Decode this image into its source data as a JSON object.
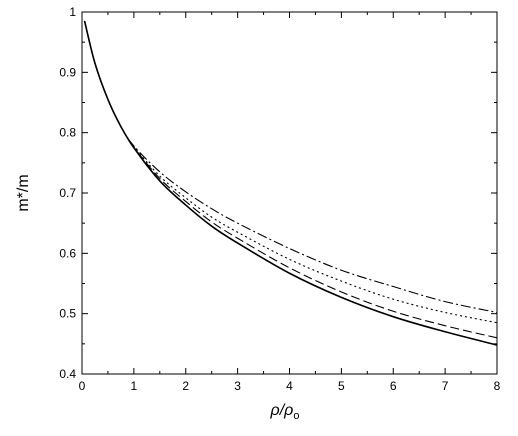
{
  "chart_data": {
    "type": "line",
    "title": "",
    "xlabel": "ρ/ρ",
    "xlabel_subscript": "o",
    "ylabel": "m*/m",
    "xlim": [
      0,
      8
    ],
    "ylim": [
      0.4,
      1.0
    ],
    "x_ticks": [
      "0",
      "1",
      "2",
      "3",
      "4",
      "5",
      "6",
      "7",
      "8"
    ],
    "y_ticks": [
      "0.4",
      "0.5",
      "0.6",
      "0.7",
      "0.8",
      "0.9",
      "1"
    ],
    "grid": false,
    "legend": "none",
    "series": [
      {
        "style": "solid",
        "x": [
          0.05,
          0.25,
          0.5,
          0.75,
          1.0,
          1.5,
          2.0,
          2.5,
          3.0,
          4.0,
          5.0,
          6.0,
          7.0,
          8.0
        ],
        "y": [
          0.985,
          0.915,
          0.855,
          0.81,
          0.775,
          0.72,
          0.68,
          0.645,
          0.617,
          0.567,
          0.527,
          0.495,
          0.47,
          0.448
        ]
      },
      {
        "style": "dashed",
        "x": [
          0.05,
          0.25,
          0.5,
          0.75,
          1.0,
          1.5,
          2.0,
          2.5,
          3.0,
          4.0,
          5.0,
          6.0,
          7.0,
          8.0
        ],
        "y": [
          0.985,
          0.915,
          0.855,
          0.81,
          0.776,
          0.724,
          0.686,
          0.652,
          0.625,
          0.576,
          0.536,
          0.504,
          0.48,
          0.46
        ]
      },
      {
        "style": "dotted",
        "x": [
          0.05,
          0.25,
          0.5,
          0.75,
          1.0,
          1.5,
          2.0,
          2.5,
          3.0,
          4.0,
          5.0,
          6.0,
          7.0,
          8.0
        ],
        "y": [
          0.985,
          0.915,
          0.855,
          0.81,
          0.777,
          0.728,
          0.692,
          0.66,
          0.635,
          0.59,
          0.554,
          0.524,
          0.502,
          0.485
        ]
      },
      {
        "style": "dash-dot",
        "x": [
          0.05,
          0.25,
          0.5,
          0.75,
          1.0,
          1.5,
          2.0,
          2.5,
          3.0,
          4.0,
          5.0,
          6.0,
          7.0,
          8.0
        ],
        "y": [
          0.985,
          0.915,
          0.855,
          0.81,
          0.778,
          0.735,
          0.702,
          0.674,
          0.65,
          0.608,
          0.572,
          0.545,
          0.52,
          0.502
        ]
      }
    ]
  }
}
